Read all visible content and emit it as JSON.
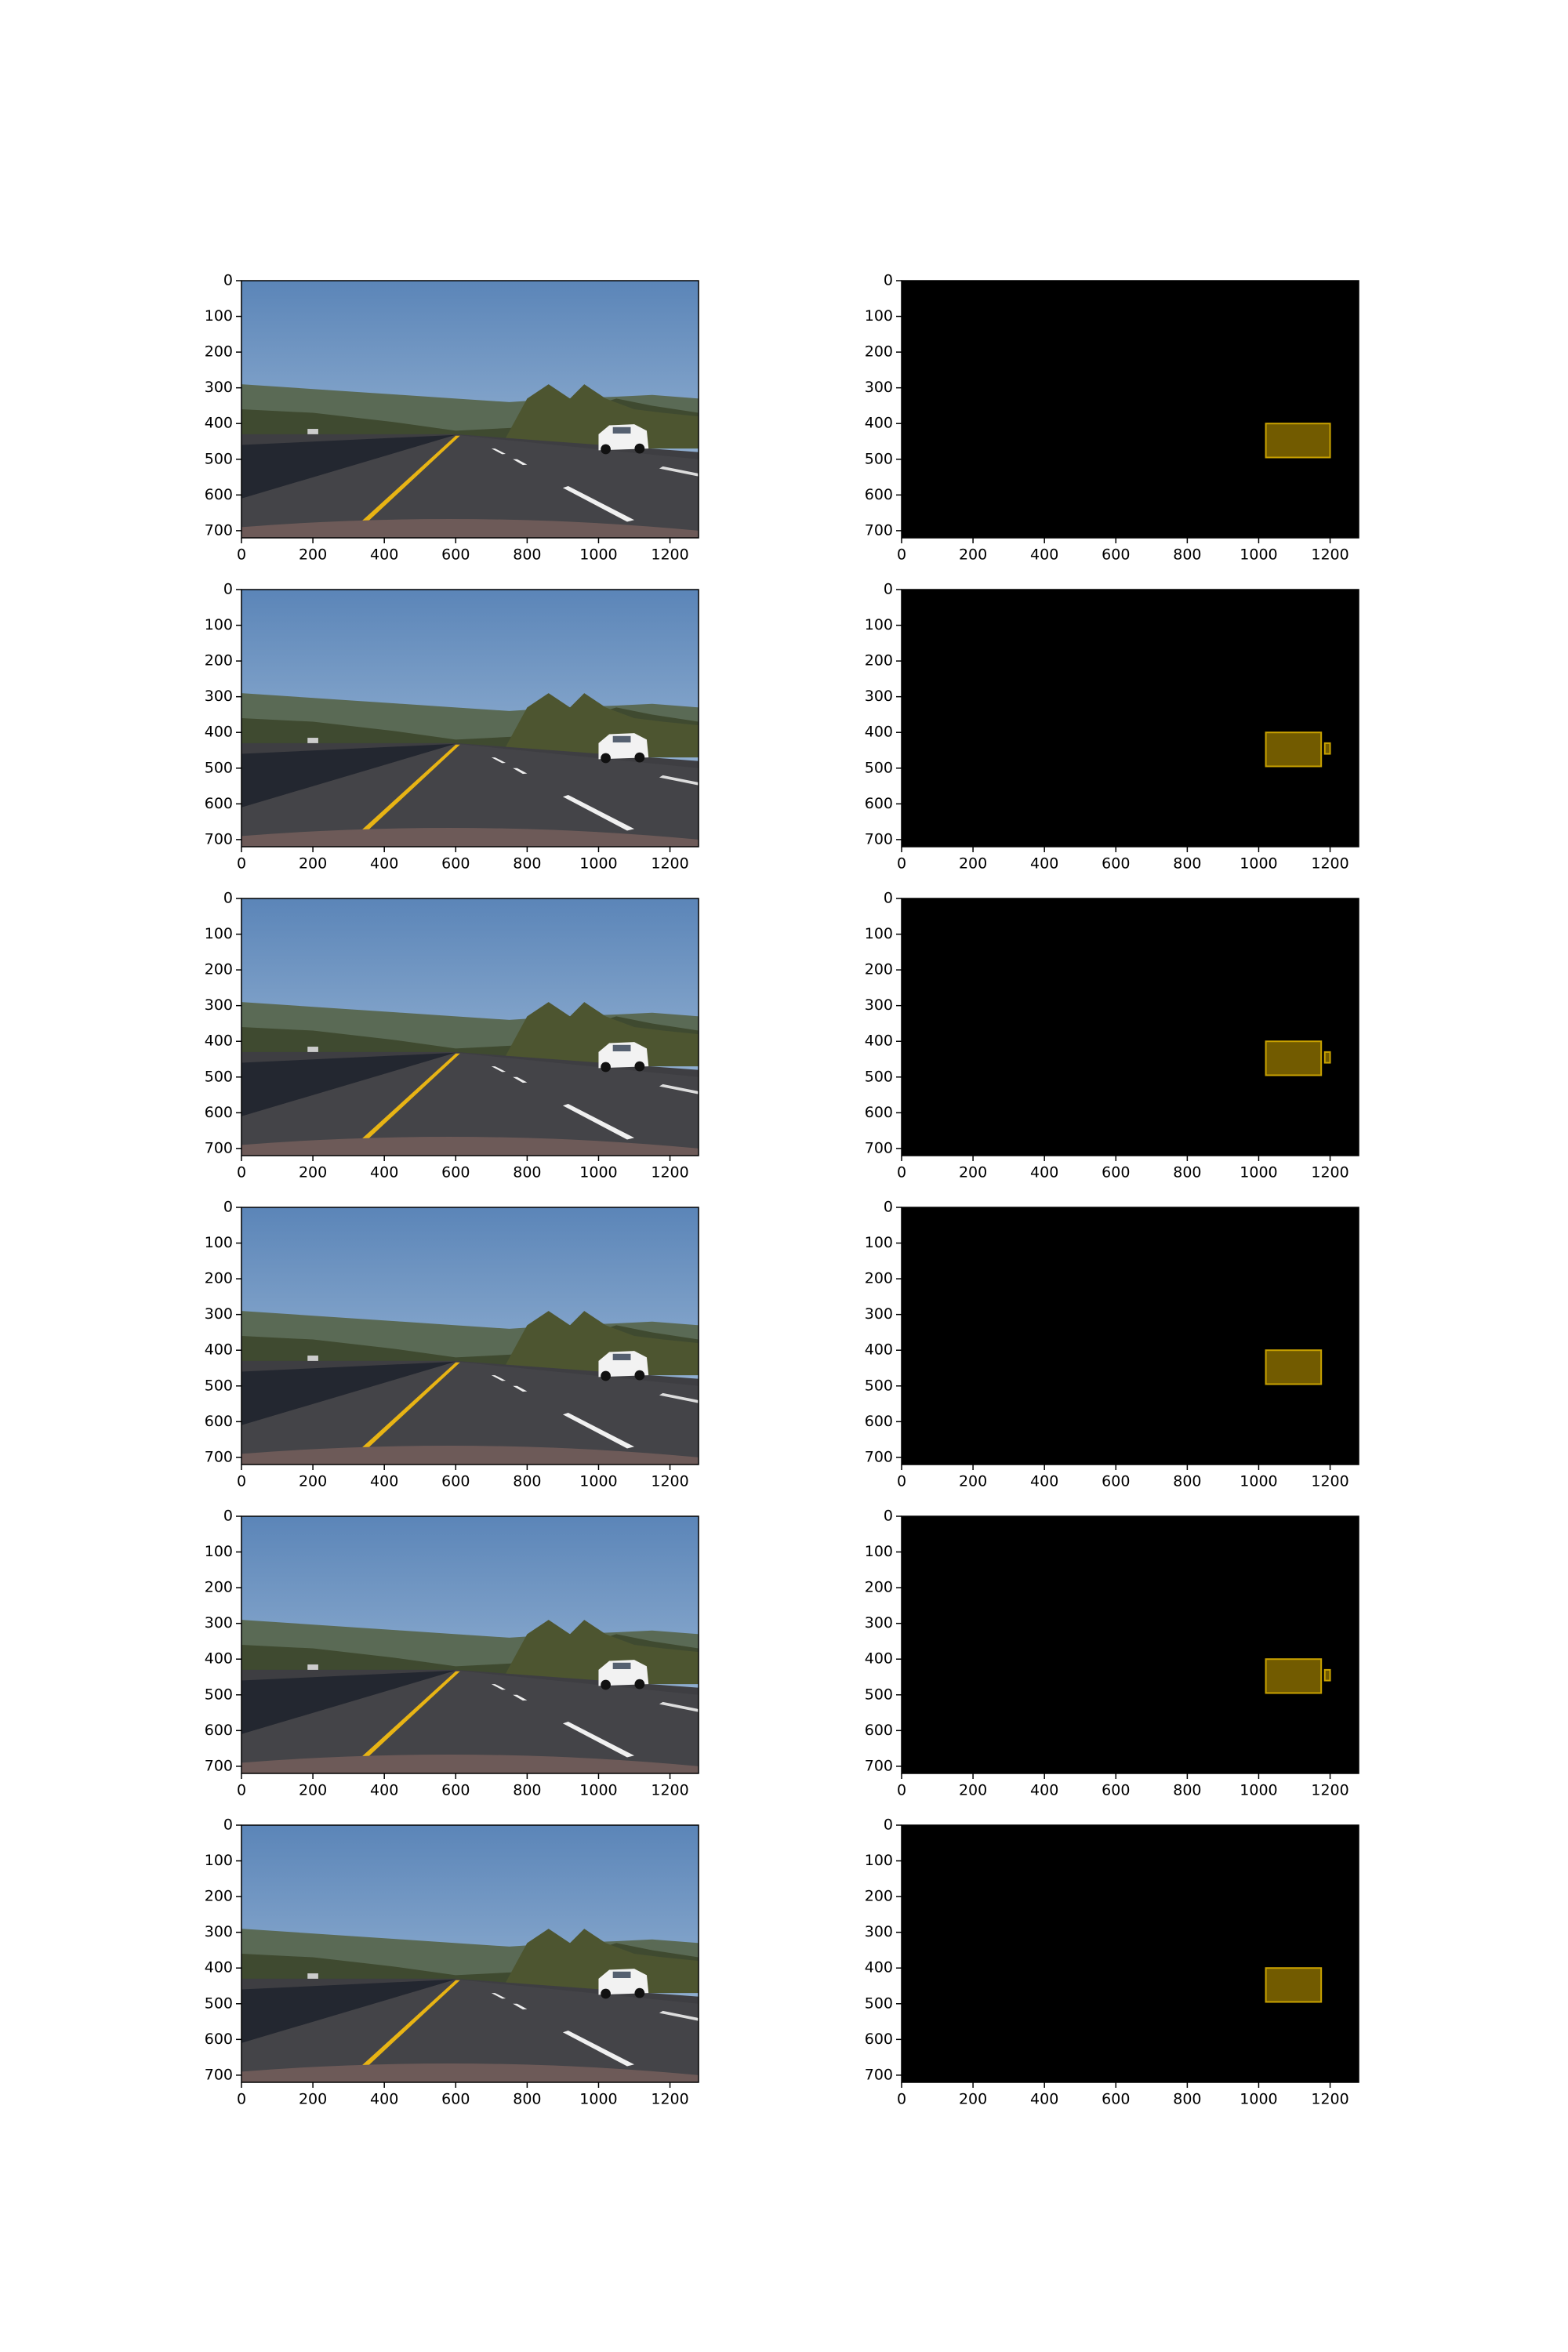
{
  "chart_data": [
    {
      "type": "image",
      "xlim": [
        0,
        1280
      ],
      "ylim": [
        720,
        0
      ],
      "xticks": [
        0,
        200,
        400,
        600,
        800,
        1000,
        1200
      ],
      "yticks": [
        0,
        100,
        200,
        300,
        400,
        500,
        600,
        700
      ]
    },
    {
      "type": "boxes",
      "xlim": [
        0,
        1280
      ],
      "ylim": [
        720,
        0
      ],
      "xticks": [
        0,
        200,
        400,
        600,
        800,
        1000,
        1200
      ],
      "yticks": [
        0,
        100,
        200,
        300,
        400,
        500,
        600,
        700
      ],
      "color": "#725b00",
      "edge_color": "#c9a200",
      "boxes": [
        [
          1020,
          400,
          1200,
          495
        ]
      ]
    },
    {
      "type": "image",
      "xlim": [
        0,
        1280
      ],
      "ylim": [
        720,
        0
      ],
      "xticks": [
        0,
        200,
        400,
        600,
        800,
        1000,
        1200
      ],
      "yticks": [
        0,
        100,
        200,
        300,
        400,
        500,
        600,
        700
      ]
    },
    {
      "type": "boxes",
      "xlim": [
        0,
        1280
      ],
      "ylim": [
        720,
        0
      ],
      "xticks": [
        0,
        200,
        400,
        600,
        800,
        1000,
        1200
      ],
      "yticks": [
        0,
        100,
        200,
        300,
        400,
        500,
        600,
        700
      ],
      "color": "#725b00",
      "edge_color": "#c9a200",
      "boxes": [
        [
          1020,
          400,
          1175,
          495
        ],
        [
          1185,
          430,
          1200,
          460
        ]
      ]
    },
    {
      "type": "image",
      "xlim": [
        0,
        1280
      ],
      "ylim": [
        720,
        0
      ],
      "xticks": [
        0,
        200,
        400,
        600,
        800,
        1000,
        1200
      ],
      "yticks": [
        0,
        100,
        200,
        300,
        400,
        500,
        600,
        700
      ]
    },
    {
      "type": "boxes",
      "xlim": [
        0,
        1280
      ],
      "ylim": [
        720,
        0
      ],
      "xticks": [
        0,
        200,
        400,
        600,
        800,
        1000,
        1200
      ],
      "yticks": [
        0,
        100,
        200,
        300,
        400,
        500,
        600,
        700
      ],
      "color": "#725b00",
      "edge_color": "#c9a200",
      "boxes": [
        [
          1020,
          400,
          1175,
          495
        ],
        [
          1185,
          430,
          1200,
          460
        ]
      ]
    },
    {
      "type": "image",
      "xlim": [
        0,
        1280
      ],
      "ylim": [
        720,
        0
      ],
      "xticks": [
        0,
        200,
        400,
        600,
        800,
        1000,
        1200
      ],
      "yticks": [
        0,
        100,
        200,
        300,
        400,
        500,
        600,
        700
      ]
    },
    {
      "type": "boxes",
      "xlim": [
        0,
        1280
      ],
      "ylim": [
        720,
        0
      ],
      "xticks": [
        0,
        200,
        400,
        600,
        800,
        1000,
        1200
      ],
      "yticks": [
        0,
        100,
        200,
        300,
        400,
        500,
        600,
        700
      ],
      "color": "#725b00",
      "edge_color": "#c9a200",
      "boxes": [
        [
          1020,
          400,
          1175,
          495
        ]
      ]
    },
    {
      "type": "image",
      "xlim": [
        0,
        1280
      ],
      "ylim": [
        720,
        0
      ],
      "xticks": [
        0,
        200,
        400,
        600,
        800,
        1000,
        1200
      ],
      "yticks": [
        0,
        100,
        200,
        300,
        400,
        500,
        600,
        700
      ]
    },
    {
      "type": "boxes",
      "xlim": [
        0,
        1280
      ],
      "ylim": [
        720,
        0
      ],
      "xticks": [
        0,
        200,
        400,
        600,
        800,
        1000,
        1200
      ],
      "yticks": [
        0,
        100,
        200,
        300,
        400,
        500,
        600,
        700
      ],
      "color": "#725b00",
      "edge_color": "#c9a200",
      "boxes": [
        [
          1020,
          400,
          1175,
          495
        ],
        [
          1185,
          430,
          1200,
          460
        ]
      ]
    },
    {
      "type": "image",
      "xlim": [
        0,
        1280
      ],
      "ylim": [
        720,
        0
      ],
      "xticks": [
        0,
        200,
        400,
        600,
        800,
        1000,
        1200
      ],
      "yticks": [
        0,
        100,
        200,
        300,
        400,
        500,
        600,
        700
      ]
    },
    {
      "type": "boxes",
      "xlim": [
        0,
        1280
      ],
      "ylim": [
        720,
        0
      ],
      "xticks": [
        0,
        200,
        400,
        600,
        800,
        1000,
        1200
      ],
      "yticks": [
        0,
        100,
        200,
        300,
        400,
        500,
        600,
        700
      ],
      "color": "#725b00",
      "edge_color": "#c9a200",
      "boxes": [
        [
          1020,
          400,
          1175,
          495
        ]
      ]
    }
  ]
}
